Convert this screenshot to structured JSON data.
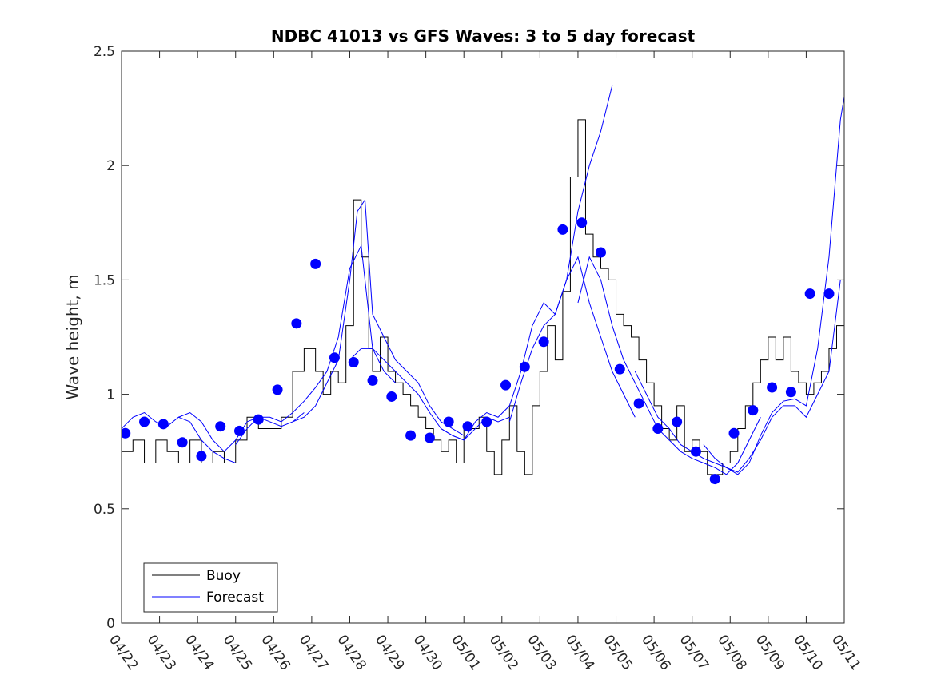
{
  "chart_data": {
    "type": "line",
    "title": "NDBC 41013 vs GFS Waves: 3 to 5 day forecast",
    "xlabel": "",
    "ylabel": "Wave height, m",
    "xlim": [
      0,
      19
    ],
    "ylim": [
      0,
      2.5
    ],
    "x_tick_labels": [
      "04/22",
      "04/23",
      "04/24",
      "04/25",
      "04/26",
      "04/27",
      "04/28",
      "04/29",
      "04/30",
      "05/01",
      "05/02",
      "05/03",
      "05/04",
      "05/05",
      "05/06",
      "05/07",
      "05/08",
      "05/09",
      "05/10",
      "05/11"
    ],
    "y_ticks": [
      0,
      0.5,
      1,
      1.5,
      2,
      2.5
    ],
    "y_tick_labels": [
      "0",
      "0.5",
      "1",
      "1.5",
      "2",
      "2.5"
    ],
    "grid": false,
    "legend": {
      "location": "bottom-left",
      "entries": [
        "Buoy",
        "Forecast"
      ]
    },
    "colors": {
      "buoy": "#000000",
      "forecast": "#0000ff",
      "markers": "#0000ff"
    },
    "series": [
      {
        "name": "Buoy",
        "color": "#000000",
        "x": [
          0,
          0.3,
          0.6,
          0.9,
          1.2,
          1.5,
          1.8,
          2.1,
          2.4,
          2.7,
          3.0,
          3.3,
          3.6,
          3.9,
          4.2,
          4.5,
          4.8,
          5.1,
          5.3,
          5.5,
          5.7,
          5.9,
          6.1,
          6.3,
          6.5,
          6.6,
          6.8,
          7.0,
          7.2,
          7.4,
          7.6,
          7.8,
          8.0,
          8.2,
          8.4,
          8.6,
          8.8,
          9.0,
          9.2,
          9.4,
          9.6,
          9.8,
          10.0,
          10.2,
          10.4,
          10.6,
          10.8,
          11.0,
          11.2,
          11.4,
          11.6,
          11.8,
          12.0,
          12.2,
          12.4,
          12.6,
          12.8,
          13.0,
          13.2,
          13.4,
          13.6,
          13.8,
          14.0,
          14.2,
          14.4,
          14.6,
          14.8,
          15.0,
          15.2,
          15.4,
          15.6,
          15.8,
          16.0,
          16.2,
          16.4,
          16.6,
          16.8,
          17.0,
          17.2,
          17.4,
          17.6,
          17.8,
          18.0,
          18.2,
          18.4,
          18.6,
          18.8,
          19.0
        ],
        "y": [
          0.75,
          0.8,
          0.7,
          0.8,
          0.75,
          0.7,
          0.8,
          0.7,
          0.75,
          0.7,
          0.8,
          0.9,
          0.85,
          0.85,
          0.9,
          1.1,
          1.2,
          1.1,
          1.0,
          1.1,
          1.05,
          1.3,
          1.85,
          1.6,
          1.2,
          1.1,
          1.25,
          1.1,
          1.05,
          1.0,
          0.95,
          0.9,
          0.85,
          0.8,
          0.75,
          0.8,
          0.7,
          0.85,
          0.85,
          0.9,
          0.75,
          0.65,
          0.8,
          0.95,
          0.75,
          0.65,
          0.95,
          1.1,
          1.3,
          1.15,
          1.45,
          1.95,
          2.2,
          1.7,
          1.6,
          1.55,
          1.5,
          1.35,
          1.3,
          1.25,
          1.15,
          1.05,
          0.95,
          0.85,
          0.8,
          0.95,
          0.75,
          0.8,
          0.75,
          0.65,
          0.65,
          0.7,
          0.75,
          0.85,
          0.95,
          1.05,
          1.15,
          1.25,
          1.15,
          1.25,
          1.1,
          1.05,
          1.0,
          1.05,
          1.1,
          1.2,
          1.3,
          1.3
        ]
      },
      {
        "name": "Forecast",
        "color": "#0000ff",
        "segments": [
          {
            "x": [
              0,
              0.3,
              0.6,
              0.9,
              1.2,
              1.5,
              1.8,
              2.1,
              2.4,
              2.7,
              3.0
            ],
            "y": [
              0.85,
              0.9,
              0.92,
              0.88,
              0.86,
              0.9,
              0.88,
              0.8,
              0.75,
              0.72,
              0.7
            ]
          },
          {
            "x": [
              1.5,
              1.8,
              2.1,
              2.4,
              2.7,
              3.0,
              3.3,
              3.6,
              3.9,
              4.2,
              4.5,
              4.8
            ],
            "y": [
              0.9,
              0.92,
              0.88,
              0.8,
              0.75,
              0.8,
              0.88,
              0.9,
              0.88,
              0.86,
              0.88,
              0.92
            ]
          },
          {
            "x": [
              3.0,
              3.3,
              3.6,
              3.9,
              4.2,
              4.5,
              4.8,
              5.1,
              5.4,
              5.7,
              6.0,
              6.3,
              6.6,
              6.9,
              7.2
            ],
            "y": [
              0.78,
              0.85,
              0.9,
              0.9,
              0.88,
              0.92,
              0.97,
              1.03,
              1.1,
              1.25,
              1.55,
              1.65,
              1.2,
              1.1,
              1.05
            ]
          },
          {
            "x": [
              4.5,
              4.8,
              5.1,
              5.4,
              5.7,
              6.0,
              6.2,
              6.4,
              6.6,
              6.9,
              7.2,
              7.5,
              7.8,
              8.1,
              8.4,
              8.7,
              9.0
            ],
            "y": [
              0.88,
              0.9,
              0.95,
              1.05,
              1.15,
              1.5,
              1.8,
              1.85,
              1.35,
              1.25,
              1.15,
              1.1,
              1.05,
              0.95,
              0.88,
              0.85,
              0.82
            ]
          },
          {
            "x": [
              6.0,
              6.3,
              6.6,
              6.9,
              7.2,
              7.5,
              7.8,
              8.1,
              8.4,
              8.7,
              9.0,
              9.3,
              9.6,
              9.9,
              10.2
            ],
            "y": [
              1.15,
              1.2,
              1.2,
              1.15,
              1.1,
              1.05,
              1.0,
              0.92,
              0.85,
              0.82,
              0.8,
              0.85,
              0.9,
              0.88,
              0.9
            ]
          },
          {
            "x": [
              8.4,
              8.7,
              9.0,
              9.3,
              9.6,
              9.9,
              10.2,
              10.5,
              10.8,
              11.1,
              11.4,
              11.7,
              12.0,
              12.3,
              12.6,
              12.9
            ],
            "y": [
              0.85,
              0.82,
              0.8,
              0.88,
              0.92,
              0.9,
              0.95,
              1.1,
              1.3,
              1.4,
              1.35,
              1.5,
              1.8,
              2.0,
              2.15,
              2.35
            ]
          },
          {
            "x": [
              10.2,
              10.5,
              10.8,
              11.1,
              11.4,
              11.7,
              12.0,
              12.3,
              12.6,
              12.9,
              13.2,
              13.5
            ],
            "y": [
              0.88,
              1.05,
              1.2,
              1.3,
              1.35,
              1.5,
              1.6,
              1.4,
              1.25,
              1.1,
              1.0,
              0.9
            ]
          },
          {
            "x": [
              12.0,
              12.3,
              12.6,
              12.9,
              13.2,
              13.5,
              13.8,
              14.1,
              14.4,
              14.7,
              15.0,
              15.3,
              15.6,
              15.9,
              16.2,
              16.5,
              16.8
            ],
            "y": [
              1.4,
              1.6,
              1.5,
              1.3,
              1.15,
              1.05,
              0.95,
              0.85,
              0.8,
              0.75,
              0.72,
              0.7,
              0.68,
              0.65,
              0.7,
              0.8,
              0.9
            ]
          },
          {
            "x": [
              13.5,
              13.8,
              14.1,
              14.4,
              14.7,
              15.0,
              15.3,
              15.6,
              15.9,
              16.2,
              16.5,
              16.8,
              17.1,
              17.4,
              17.7,
              18.0,
              18.3,
              18.6,
              18.9
            ],
            "y": [
              1.1,
              1.0,
              0.9,
              0.85,
              0.78,
              0.75,
              0.72,
              0.7,
              0.68,
              0.66,
              0.72,
              0.8,
              0.9,
              0.95,
              0.95,
              0.9,
              1.0,
              1.1,
              1.5
            ]
          },
          {
            "x": [
              15.3,
              15.6,
              15.9,
              16.2,
              16.5,
              16.8,
              17.1,
              17.4,
              17.7,
              18.0,
              18.3,
              18.6,
              18.9,
              19.0
            ],
            "y": [
              0.78,
              0.72,
              0.68,
              0.65,
              0.7,
              0.82,
              0.92,
              0.97,
              0.98,
              0.95,
              1.2,
              1.6,
              2.2,
              2.3
            ]
          }
        ]
      },
      {
        "name": "",
        "type": "scatter",
        "color": "#0000ff",
        "x": [
          0.1,
          0.6,
          1.1,
          1.6,
          2.1,
          2.6,
          3.1,
          3.6,
          4.1,
          4.6,
          5.1,
          5.6,
          6.1,
          6.6,
          7.1,
          7.6,
          8.1,
          8.6,
          9.1,
          9.6,
          10.1,
          10.6,
          11.1,
          11.6,
          12.1,
          12.6,
          13.1,
          13.6,
          14.1,
          14.6,
          15.1,
          15.6,
          16.1,
          16.6,
          17.1,
          17.6,
          18.1,
          18.6
        ],
        "y": [
          0.83,
          0.88,
          0.87,
          0.79,
          0.73,
          0.86,
          0.84,
          0.89,
          1.02,
          1.31,
          1.57,
          1.16,
          1.14,
          1.06,
          0.99,
          0.82,
          0.81,
          0.88,
          0.86,
          0.88,
          1.04,
          1.12,
          1.23,
          1.72,
          1.75,
          1.62,
          1.11,
          0.96,
          0.85,
          0.88,
          0.75,
          0.63,
          0.83,
          0.93,
          1.03,
          1.01,
          1.44,
          1.44
        ]
      }
    ]
  }
}
